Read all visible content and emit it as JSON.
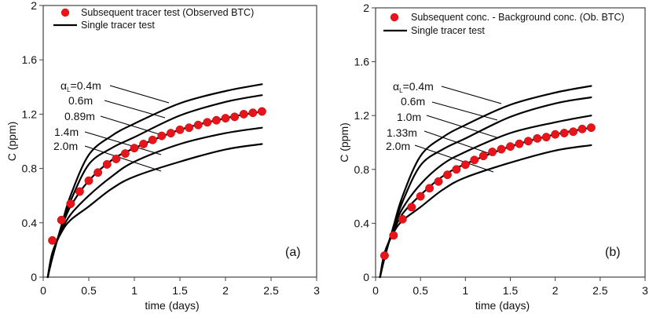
{
  "chart_data": [
    {
      "type": "line",
      "panel_tag": "(a)",
      "title": "",
      "xlabel": "time (days)",
      "ylabel": "C (ppm)",
      "xlim": [
        0,
        3
      ],
      "ylim": [
        0,
        2
      ],
      "xticks": [
        0,
        0.5,
        1,
        1.5,
        2,
        2.5,
        3
      ],
      "xtick_labels": [
        "0",
        "0.5",
        "1",
        "1.5",
        "2",
        "2.5",
        "3"
      ],
      "yticks": [
        0,
        0.4,
        0.8,
        1.2,
        1.6,
        2
      ],
      "ytick_labels": [
        "0",
        "0.4",
        "0.8",
        "1.2",
        "1.6",
        "2"
      ],
      "grid": false,
      "legend": {
        "placement": "top-left",
        "entries": [
          {
            "label": "Subsequent tracer test (Observed BTC)",
            "marker": "circle",
            "color": "#e8141b"
          },
          {
            "label": "Single tracer test",
            "marker": "line",
            "color": "#000000"
          }
        ]
      },
      "observed": {
        "name": "Subsequent tracer test (Observed BTC)",
        "color": "#e8141b",
        "x": [
          0.1,
          0.2,
          0.3,
          0.4,
          0.5,
          0.6,
          0.7,
          0.8,
          0.9,
          1.0,
          1.1,
          1.2,
          1.3,
          1.4,
          1.5,
          1.6,
          1.7,
          1.8,
          1.9,
          2.0,
          2.1,
          2.2,
          2.3,
          2.4
        ],
        "y": [
          0.27,
          0.42,
          0.54,
          0.63,
          0.71,
          0.77,
          0.83,
          0.87,
          0.91,
          0.95,
          0.98,
          1.01,
          1.04,
          1.06,
          1.085,
          1.1,
          1.12,
          1.14,
          1.155,
          1.17,
          1.18,
          1.2,
          1.21,
          1.22
        ]
      },
      "model_x": [
        0.05,
        0.1,
        0.2,
        0.3,
        0.5,
        0.75,
        1.0,
        1.5,
        2.0,
        2.4
      ],
      "series": [
        {
          "name": "0.4m",
          "label": "αL=0.4m",
          "values": [
            0,
            0.14,
            0.38,
            0.6,
            0.9,
            1.04,
            1.13,
            1.28,
            1.37,
            1.42
          ]
        },
        {
          "name": "0.6m",
          "label": "0.6m",
          "values": [
            0,
            0.15,
            0.37,
            0.56,
            0.83,
            0.95,
            1.03,
            1.19,
            1.29,
            1.34
          ]
        },
        {
          "name": "0.89m",
          "label": "0.89m",
          "values": [
            0,
            0.16,
            0.36,
            0.52,
            0.71,
            0.86,
            0.95,
            1.085,
            1.17,
            1.22
          ]
        },
        {
          "name": "1.4m",
          "label": "1.4m",
          "values": [
            0,
            0.17,
            0.34,
            0.46,
            0.6,
            0.74,
            0.85,
            0.98,
            1.06,
            1.1
          ]
        },
        {
          "name": "2.0m",
          "label": "2.0m",
          "values": [
            0,
            0.18,
            0.33,
            0.42,
            0.52,
            0.65,
            0.74,
            0.85,
            0.94,
            0.98
          ]
        }
      ]
    },
    {
      "type": "line",
      "panel_tag": "(b)",
      "title": "",
      "xlabel": "time (days)",
      "ylabel": "C (ppm)",
      "xlim": [
        0,
        3
      ],
      "ylim": [
        0,
        2
      ],
      "xticks": [
        0,
        0.5,
        1,
        1.5,
        2,
        2.5,
        3
      ],
      "xtick_labels": [
        "0",
        "0.5",
        "1",
        "1.5",
        "2",
        "2.5",
        "3"
      ],
      "yticks": [
        0,
        0.4,
        0.8,
        1.2,
        1.6,
        2
      ],
      "ytick_labels": [
        "0",
        "0.4",
        "0.8",
        "1.2",
        "1.6",
        "2"
      ],
      "grid": false,
      "legend": {
        "placement": "top-left",
        "entries": [
          {
            "label": "Subsequent conc. - Background conc. (Ob. BTC)",
            "marker": "circle",
            "color": "#e8141b"
          },
          {
            "label": "Single tracer test",
            "marker": "line",
            "color": "#000000"
          }
        ]
      },
      "observed": {
        "name": "Subsequent conc. - Background conc. (Ob. BTC)",
        "color": "#e8141b",
        "x": [
          0.1,
          0.2,
          0.3,
          0.4,
          0.5,
          0.6,
          0.7,
          0.8,
          0.9,
          1.0,
          1.1,
          1.2,
          1.3,
          1.4,
          1.5,
          1.6,
          1.7,
          1.8,
          1.9,
          2.0,
          2.1,
          2.2,
          2.3,
          2.4
        ],
        "y": [
          0.16,
          0.31,
          0.43,
          0.52,
          0.6,
          0.66,
          0.71,
          0.76,
          0.8,
          0.835,
          0.87,
          0.9,
          0.93,
          0.95,
          0.97,
          0.99,
          1.01,
          1.03,
          1.04,
          1.06,
          1.07,
          1.08,
          1.1,
          1.11
        ]
      },
      "model_x": [
        0.05,
        0.1,
        0.2,
        0.3,
        0.5,
        0.75,
        1.0,
        1.5,
        2.0,
        2.4
      ],
      "series": [
        {
          "name": "0.4m",
          "label": "αL=0.4m",
          "values": [
            0,
            0.14,
            0.38,
            0.6,
            0.9,
            1.04,
            1.13,
            1.28,
            1.37,
            1.42
          ]
        },
        {
          "name": "0.6m",
          "label": "0.6m",
          "values": [
            0,
            0.15,
            0.37,
            0.56,
            0.83,
            0.95,
            1.03,
            1.19,
            1.29,
            1.335
          ]
        },
        {
          "name": "1.0m",
          "label": "1.0m",
          "values": [
            0,
            0.16,
            0.36,
            0.51,
            0.69,
            0.84,
            0.93,
            1.07,
            1.15,
            1.2
          ]
        },
        {
          "name": "1.33m",
          "label": "1.33m",
          "values": [
            0,
            0.17,
            0.34,
            0.47,
            0.61,
            0.75,
            0.84,
            0.97,
            1.06,
            1.11
          ]
        },
        {
          "name": "2.0m",
          "label": "2.0m",
          "values": [
            0,
            0.18,
            0.33,
            0.42,
            0.52,
            0.65,
            0.74,
            0.85,
            0.94,
            0.98
          ]
        }
      ]
    }
  ]
}
